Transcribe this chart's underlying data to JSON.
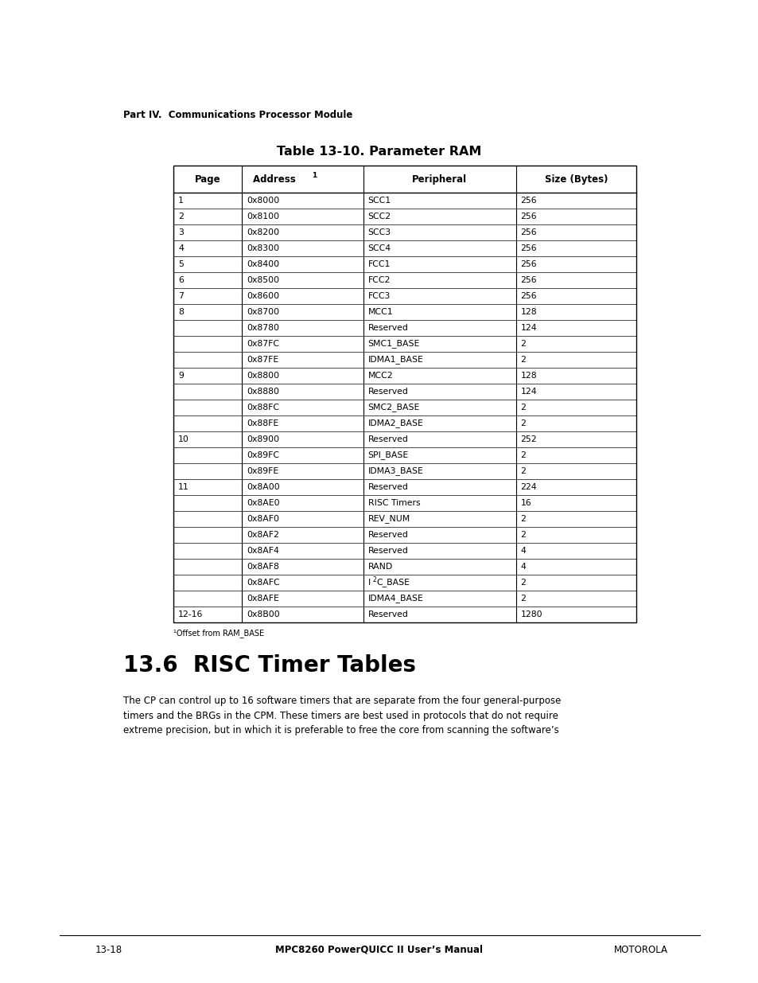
{
  "page_header": "Part IV.  Communications Processor Module",
  "table_title": "Table 13-10. Parameter RAM",
  "col_headers": [
    "Page",
    "Address 1",
    "Peripheral",
    "Size (Bytes)"
  ],
  "footnote": "1Offset from RAM_BASE",
  "rows": [
    [
      "1",
      "0x8000",
      "SCC1",
      "256"
    ],
    [
      "2",
      "0x8100",
      "SCC2",
      "256"
    ],
    [
      "3",
      "0x8200",
      "SCC3",
      "256"
    ],
    [
      "4",
      "0x8300",
      "SCC4",
      "256"
    ],
    [
      "5",
      "0x8400",
      "FCC1",
      "256"
    ],
    [
      "6",
      "0x8500",
      "FCC2",
      "256"
    ],
    [
      "7",
      "0x8600",
      "FCC3",
      "256"
    ],
    [
      "8",
      "0x8700",
      "MCC1",
      "128"
    ],
    [
      "",
      "0x8780",
      "Reserved",
      "124"
    ],
    [
      "",
      "0x87FC",
      "SMC1_BASE",
      "2"
    ],
    [
      "",
      "0x87FE",
      "IDMA1_BASE",
      "2"
    ],
    [
      "9",
      "0x8800",
      "MCC2",
      "128"
    ],
    [
      "",
      "0x8880",
      "Reserved",
      "124"
    ],
    [
      "",
      "0x88FC",
      "SMC2_BASE",
      "2"
    ],
    [
      "",
      "0x88FE",
      "IDMA2_BASE",
      "2"
    ],
    [
      "10",
      "0x8900",
      "Reserved",
      "252"
    ],
    [
      "",
      "0x89FC",
      "SPI_BASE",
      "2"
    ],
    [
      "",
      "0x89FE",
      "IDMA3_BASE",
      "2"
    ],
    [
      "11",
      "0x8A00",
      "Reserved",
      "224"
    ],
    [
      "",
      "0x8AE0",
      "RISC Timers",
      "16"
    ],
    [
      "",
      "0x8AF0",
      "REV_NUM",
      "2"
    ],
    [
      "",
      "0x8AF2",
      "Reserved",
      "2"
    ],
    [
      "",
      "0x8AF4",
      "Reserved",
      "4"
    ],
    [
      "",
      "0x8AF8",
      "RAND",
      "4"
    ],
    [
      "",
      "0x8AFC",
      "I2C_BASE",
      "2"
    ],
    [
      "",
      "0x8AFE",
      "IDMA4_BASE",
      "2"
    ],
    [
      "12-16",
      "0x8B00",
      "Reserved",
      "1280"
    ]
  ],
  "section_title": "13.6  RISC Timer Tables",
  "section_text": "The CP can control up to 16 software timers that are separate from the four general-purpose\ntimers and the BRGs in the CPM. These timers are best used in protocols that do not require\nextreme precision, but in which it is preferable to free the core from scanning the software’s",
  "footer_left": "13-18",
  "footer_center": "MPC8260 PowerQUICC II User’s Manual",
  "footer_right": "MOTOROLA",
  "bg_color": "#ffffff",
  "text_color": "#000000"
}
